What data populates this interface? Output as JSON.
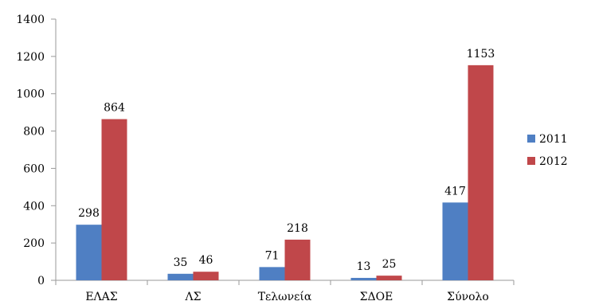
{
  "chart_data": {
    "type": "bar",
    "title": "",
    "xlabel": "",
    "ylabel": "",
    "categories": [
      "ΕΛΑΣ",
      "ΛΣ",
      "Τελωνεία",
      "ΣΔΟΕ",
      "Σύνολο"
    ],
    "series": [
      {
        "name": "2011",
        "values": [
          298,
          35,
          71,
          13,
          417
        ],
        "color": "#4f7fc3"
      },
      {
        "name": "2012",
        "values": [
          864,
          46,
          218,
          25,
          1153
        ],
        "color": "#c0474a"
      }
    ],
    "ylim": [
      0,
      1400
    ],
    "yticks": [
      0,
      200,
      400,
      600,
      800,
      1000,
      1200,
      1400
    ],
    "grid": false,
    "legend": "right",
    "data_labels": true
  }
}
